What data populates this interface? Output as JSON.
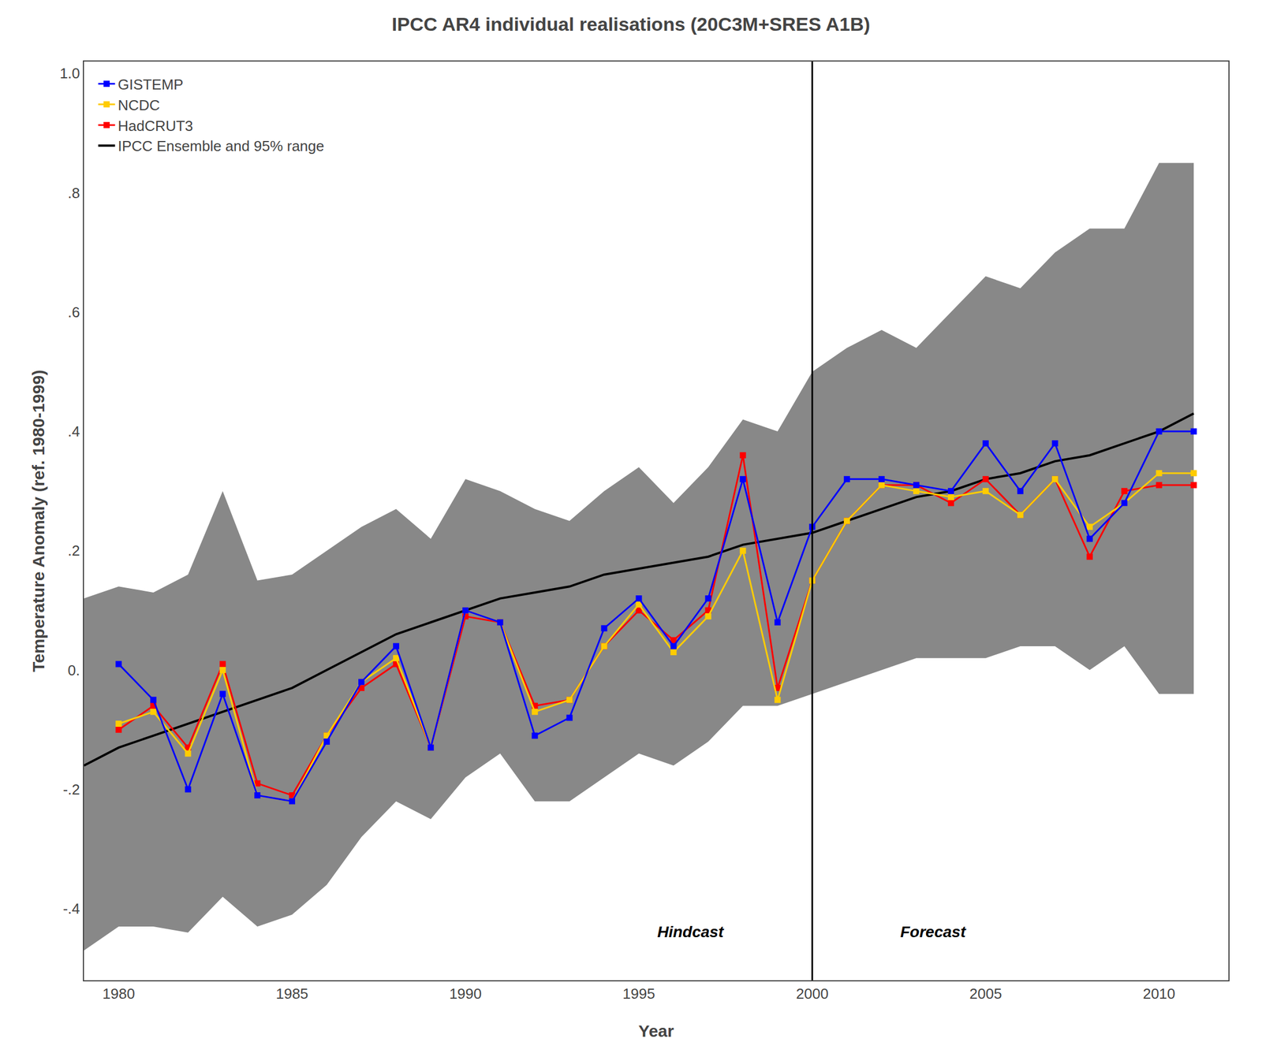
{
  "chart_data": {
    "type": "line",
    "title": "IPCC AR4 individual realisations (20C3M+SRES A1B)",
    "xlabel": "Year",
    "ylabel": "Temperature Anomaly (ref. 1980-1999)",
    "xlim": [
      1979.0,
      2012.0
    ],
    "ylim": [
      -0.52,
      1.02
    ],
    "xticks": [
      1980,
      1985,
      1990,
      1995,
      2000,
      2005,
      2010
    ],
    "yticks": [
      {
        "value": -0.4,
        "label": "-.4"
      },
      {
        "value": -0.2,
        "label": "-.2"
      },
      {
        "value": 0.0,
        "label": "0."
      },
      {
        "value": 0.2,
        "label": ".2"
      },
      {
        "value": 0.4,
        "label": ".4"
      },
      {
        "value": 0.6,
        "label": ".6"
      },
      {
        "value": 0.8,
        "label": ".8"
      },
      {
        "value": 1.0,
        "label": "1.0"
      }
    ],
    "grid": false,
    "legend": "upper left",
    "series": [
      {
        "type": "band",
        "color": "#888888",
        "x": [
          1979,
          1980,
          1981,
          1982,
          1983,
          1984,
          1985,
          1986,
          1987,
          1988,
          1989,
          1990,
          1991,
          1992,
          1993,
          1994,
          1995,
          1996,
          1997,
          1998,
          1999,
          2000,
          2001,
          2002,
          2003,
          2004,
          2005,
          2006,
          2007,
          2008,
          2009,
          2010,
          2011
        ],
        "lower": [
          -0.47,
          -0.43,
          -0.43,
          -0.44,
          -0.38,
          -0.43,
          -0.41,
          -0.36,
          -0.28,
          -0.22,
          -0.25,
          -0.18,
          -0.14,
          -0.22,
          -0.22,
          -0.18,
          -0.14,
          -0.16,
          -0.12,
          -0.06,
          -0.06,
          -0.04,
          -0.02,
          0.0,
          0.02,
          0.02,
          0.02,
          0.04,
          0.04,
          0.0,
          0.04,
          -0.04,
          -0.04
        ],
        "upper": [
          0.12,
          0.14,
          0.13,
          0.16,
          0.3,
          0.15,
          0.16,
          0.2,
          0.24,
          0.27,
          0.22,
          0.32,
          0.3,
          0.27,
          0.25,
          0.3,
          0.34,
          0.28,
          0.34,
          0.42,
          0.4,
          0.5,
          0.54,
          0.57,
          0.54,
          0.6,
          0.66,
          0.64,
          0.7,
          0.74,
          0.74,
          0.85,
          0.85
        ]
      },
      {
        "name": "IPCC Ensemble and 95% range",
        "color": "#000000",
        "x": [
          1979,
          1980,
          1981,
          1982,
          1983,
          1984,
          1985,
          1986,
          1987,
          1988,
          1989,
          1990,
          1991,
          1992,
          1993,
          1994,
          1995,
          1996,
          1997,
          1998,
          1999,
          2000,
          2001,
          2002,
          2003,
          2004,
          2005,
          2006,
          2007,
          2008,
          2009,
          2010,
          2011
        ],
        "values": [
          -0.16,
          -0.13,
          -0.11,
          -0.09,
          -0.07,
          -0.05,
          -0.03,
          0.0,
          0.03,
          0.06,
          0.08,
          0.1,
          0.12,
          0.13,
          0.14,
          0.16,
          0.17,
          0.18,
          0.19,
          0.21,
          0.22,
          0.23,
          0.25,
          0.27,
          0.29,
          0.3,
          0.32,
          0.33,
          0.35,
          0.36,
          0.38,
          0.4,
          0.43
        ]
      },
      {
        "name": "HadCRUT3",
        "color": "#ff0000",
        "marker": "square",
        "x": [
          1980,
          1981,
          1982,
          1983,
          1984,
          1985,
          1986,
          1987,
          1988,
          1989,
          1990,
          1991,
          1992,
          1993,
          1994,
          1995,
          1996,
          1997,
          1998,
          1999,
          2000,
          2001,
          2002,
          2003,
          2004,
          2005,
          2006,
          2007,
          2008,
          2009,
          2010,
          2011
        ],
        "values": [
          -0.1,
          -0.06,
          -0.13,
          0.01,
          -0.19,
          -0.21,
          -0.11,
          -0.03,
          0.01,
          -0.13,
          0.09,
          0.08,
          -0.06,
          -0.05,
          0.04,
          0.1,
          0.05,
          0.1,
          0.36,
          -0.03,
          0.15,
          0.25,
          0.31,
          0.31,
          0.28,
          0.32,
          0.26,
          0.32,
          0.19,
          0.3,
          0.31,
          0.31
        ]
      },
      {
        "name": "NCDC",
        "color": "#ffcc00",
        "marker": "square",
        "x": [
          1980,
          1981,
          1982,
          1983,
          1984,
          1985,
          1986,
          1987,
          1988,
          1989,
          1990,
          1991,
          1992,
          1993,
          1994,
          1995,
          1996,
          1997,
          1998,
          1999,
          2000,
          2001,
          2002,
          2003,
          2004,
          2005,
          2006,
          2007,
          2008,
          2009,
          2010,
          2011
        ],
        "values": [
          -0.09,
          -0.07,
          -0.14,
          0.0,
          -0.21,
          -0.22,
          -0.11,
          -0.02,
          0.02,
          -0.13,
          0.1,
          0.08,
          -0.07,
          -0.05,
          0.04,
          0.11,
          0.03,
          0.09,
          0.2,
          -0.05,
          0.15,
          0.25,
          0.31,
          0.3,
          0.29,
          0.3,
          0.26,
          0.32,
          0.24,
          0.28,
          0.33,
          0.33
        ]
      },
      {
        "name": "GISTEMP",
        "color": "#0000ff",
        "marker": "square",
        "x": [
          1980,
          1981,
          1982,
          1983,
          1984,
          1985,
          1986,
          1987,
          1988,
          1989,
          1990,
          1991,
          1992,
          1993,
          1994,
          1995,
          1996,
          1997,
          1998,
          1999,
          2000,
          2001,
          2002,
          2003,
          2004,
          2005,
          2006,
          2007,
          2008,
          2009,
          2010,
          2011
        ],
        "values": [
          0.01,
          -0.05,
          -0.2,
          -0.04,
          -0.21,
          -0.22,
          -0.12,
          -0.02,
          0.04,
          -0.13,
          0.1,
          0.08,
          -0.11,
          -0.08,
          0.07,
          0.12,
          0.04,
          0.12,
          0.32,
          0.08,
          0.24,
          0.32,
          0.32,
          0.31,
          0.3,
          0.38,
          0.3,
          0.38,
          0.22,
          0.28,
          0.4,
          0.4
        ]
      }
    ],
    "vlines": [
      {
        "x": 2000,
        "color": "#000000"
      }
    ],
    "annotations": [
      {
        "text": "Hindcast",
        "x": 1997.5,
        "y": -0.455,
        "align": "right"
      },
      {
        "text": "Forecast",
        "x": 2002.5,
        "y": -0.455,
        "align": "left"
      }
    ]
  }
}
